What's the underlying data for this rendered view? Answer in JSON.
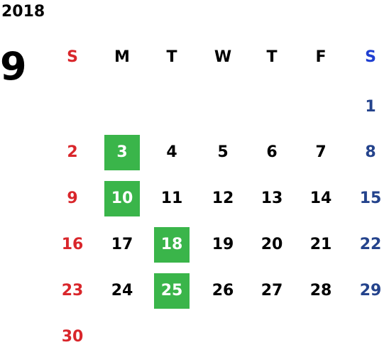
{
  "calendar": {
    "year": "2018",
    "month": "9",
    "colors": {
      "sunday": "#d9262b",
      "saturday_header": "#1f3fd1",
      "saturday": "#24438c",
      "weekday": "#000000",
      "highlight": "#3ab54a",
      "highlight_text": "#ffffff"
    },
    "weekdays": [
      "S",
      "M",
      "T",
      "W",
      "T",
      "F",
      "S"
    ],
    "weeks": [
      [
        "",
        "",
        "",
        "",
        "",
        "",
        "1"
      ],
      [
        "2",
        "3",
        "4",
        "5",
        "6",
        "7",
        "8"
      ],
      [
        "9",
        "10",
        "11",
        "12",
        "13",
        "14",
        "15"
      ],
      [
        "16",
        "17",
        "18",
        "19",
        "20",
        "21",
        "22"
      ],
      [
        "23",
        "24",
        "25",
        "26",
        "27",
        "28",
        "29"
      ],
      [
        "30",
        "",
        "",
        "",
        "",
        "",
        ""
      ]
    ],
    "highlighted_days": [
      "3",
      "10",
      "18",
      "25"
    ]
  }
}
